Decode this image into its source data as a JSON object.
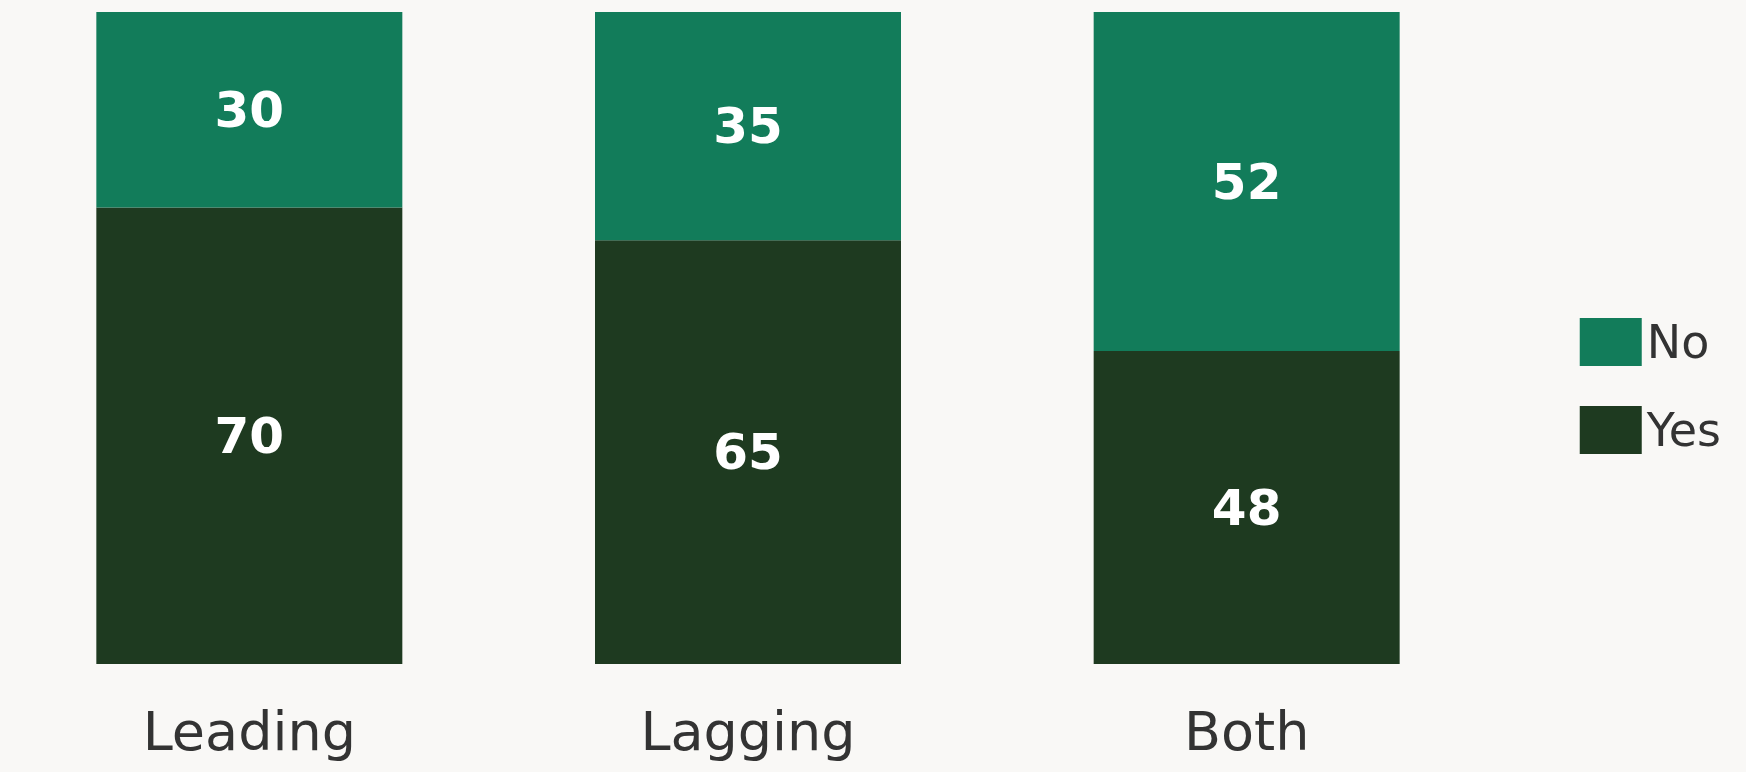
{
  "chart_data": {
    "type": "bar",
    "stacked": true,
    "categories": [
      "Leading",
      "Lagging",
      "Both"
    ],
    "series": [
      {
        "name": "Yes",
        "color": "#1e3a20",
        "values": [
          70,
          65,
          48
        ]
      },
      {
        "name": "No",
        "color": "#127c5a",
        "values": [
          30,
          35,
          52
        ]
      }
    ],
    "data_labels": true,
    "legend": "right",
    "grid": false,
    "tick_labels": "x"
  }
}
